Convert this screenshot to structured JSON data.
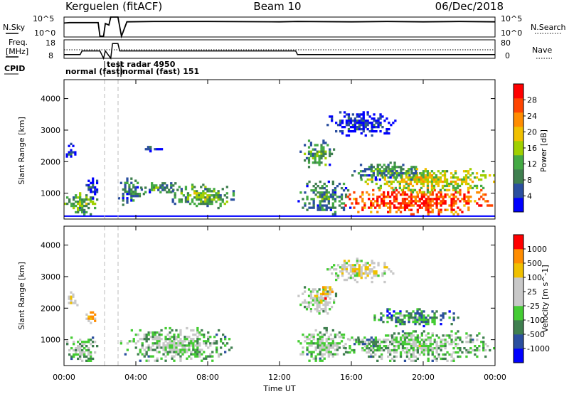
{
  "header": {
    "station": "Kerguelen (fitACF)",
    "beam": "Beam 10",
    "date": "06/Dec/2018"
  },
  "side_labels": {
    "nsky": "N.Sky",
    "nsearch": "N.Search",
    "freq_line1": "Freq.",
    "freq_line2": "[MHz]",
    "nave": "Nave",
    "cpid": "CPID"
  },
  "top_axes": {
    "nsky_left_ticks": [
      "10^5",
      "10^0"
    ],
    "nsearch_right_ticks": [
      "10^5",
      "10^0"
    ],
    "freq_left_ticks": [
      "18",
      "8"
    ],
    "nave_right_ticks": [
      "80",
      "0"
    ]
  },
  "cpid_labels": {
    "normal_fast": "normal (fast)",
    "test_radar": "test radar 4950",
    "normal_fast_151": "normal (fast) 151"
  },
  "colors": {
    "power": [
      "#0000ff",
      "#2b4f9f",
      "#3f7f4f",
      "#44aa44",
      "#a0d000",
      "#f0c000",
      "#ff8c00",
      "#ff4400",
      "#ff0000"
    ],
    "velocity": [
      "#0000ff",
      "#2b4f9f",
      "#3f7f4f",
      "#44cc33",
      "#c8c8c8",
      "#c8c8c8",
      "#f0c000",
      "#ff8c00",
      "#ff0000"
    ]
  },
  "chart_data": [
    {
      "type": "line",
      "x": [
        0,
        0.3,
        1.9,
        2.0,
        2.2,
        2.3,
        2.5,
        2.6,
        3.0,
        3.2,
        3.5,
        5,
        8,
        12,
        13,
        16,
        18,
        20,
        22,
        24
      ],
      "series": [
        {
          "values": [
            3.5,
            3.6,
            3.6,
            0.2,
            0.2,
            3.4,
            3.0,
            5,
            5,
            0.2,
            3.8,
            3.9,
            3.9,
            3.8,
            3.9,
            3.8,
            3.9,
            3.8,
            3.9,
            3.8
          ]
        }
      ],
      "ylim": [
        0,
        5
      ]
    },
    {
      "type": "line",
      "x": [
        0,
        0.9,
        1.0,
        2.0,
        2.2,
        2.3,
        2.6,
        2.7,
        3.0,
        3.1,
        12.9,
        13.0,
        24
      ],
      "series": [
        {
          "values": [
            10,
            10,
            12,
            12,
            8,
            12,
            8,
            16,
            16,
            12,
            12,
            10,
            10
          ]
        }
      ],
      "ylim": [
        8,
        18
      ]
    },
    {
      "type": "heatmap",
      "xlabel": "",
      "ylabel": "Slant Range [km]",
      "colorbar_label": "Power [dB]",
      "colorbar_ticks": [
        "28",
        "24",
        "20",
        "16",
        "12",
        "8",
        "4"
      ],
      "xlim": [
        0,
        24
      ],
      "ylim": [
        180,
        4600
      ],
      "yticks": [
        "1000",
        "2000",
        "3000",
        "4000"
      ],
      "blobs": [
        {
          "t0": 0,
          "t1": 1.9,
          "r0": 300,
          "r1": 1100,
          "level": 0.45
        },
        {
          "t0": 0.1,
          "t1": 0.8,
          "r0": 2000,
          "r1": 2600,
          "level": 0.2
        },
        {
          "t0": 1.2,
          "t1": 1.9,
          "r0": 800,
          "r1": 1500,
          "level": 0.15
        },
        {
          "t0": 3.0,
          "t1": 4.5,
          "r0": 600,
          "r1": 1500,
          "level": 0.3
        },
        {
          "t0": 4.0,
          "t1": 6.5,
          "r0": 1000,
          "r1": 1350,
          "level": 0.35
        },
        {
          "t0": 6.0,
          "t1": 9.5,
          "r0": 500,
          "r1": 1300,
          "level": 0.45
        },
        {
          "t0": 4.5,
          "t1": 5.5,
          "r0": 2300,
          "r1": 2500,
          "level": 0.2
        },
        {
          "t0": 13.0,
          "t1": 16.0,
          "r0": 300,
          "r1": 1400,
          "level": 0.35
        },
        {
          "t0": 13.0,
          "t1": 15.2,
          "r0": 1800,
          "r1": 2700,
          "level": 0.4
        },
        {
          "t0": 15.5,
          "t1": 24,
          "r0": 300,
          "r1": 1200,
          "level": 0.9
        },
        {
          "t0": 16.5,
          "t1": 24,
          "r0": 1000,
          "r1": 1800,
          "level": 0.6
        },
        {
          "t0": 16.0,
          "t1": 20.0,
          "r0": 1400,
          "r1": 2000,
          "level": 0.35
        },
        {
          "t0": 14.5,
          "t1": 18.5,
          "r0": 2800,
          "r1": 3600,
          "level": 0.15
        }
      ],
      "ground_band": {
        "t0": 0,
        "t1": 24,
        "r": 250,
        "level": 0.05
      }
    },
    {
      "type": "heatmap",
      "xlabel": "Time UT",
      "ylabel": "Slant Range [km]",
      "colorbar_label": "Velocity [m s^-1]",
      "colorbar_ticks": [
        "1000",
        "500",
        "100",
        "25",
        "-25",
        "-100",
        "-500",
        "-1000"
      ],
      "xlim": [
        0,
        24
      ],
      "ylim": [
        180,
        4600
      ],
      "yticks": [
        "1000",
        "2000",
        "3000",
        "4000"
      ],
      "xticks": [
        "00:00",
        "04:00",
        "08:00",
        "12:00",
        "16:00",
        "20:00",
        "00:00"
      ],
      "blobs": [
        {
          "t0": 0,
          "t1": 1.9,
          "r0": 300,
          "r1": 1100,
          "level": 0.5
        },
        {
          "t0": 0.1,
          "t1": 0.8,
          "r0": 2000,
          "r1": 2600,
          "level": 0.7
        },
        {
          "t0": 1.2,
          "t1": 1.9,
          "r0": 1500,
          "r1": 1900,
          "level": 0.75
        },
        {
          "t0": 3.0,
          "t1": 9.5,
          "r0": 300,
          "r1": 1400,
          "level": 0.5
        },
        {
          "t0": 13.0,
          "t1": 16.0,
          "r0": 300,
          "r1": 1400,
          "level": 0.5
        },
        {
          "t0": 13.0,
          "t1": 15.2,
          "r0": 1800,
          "r1": 2700,
          "level": 0.55
        },
        {
          "t0": 14.0,
          "t1": 15.0,
          "r0": 2200,
          "r1": 2700,
          "level": 0.8
        },
        {
          "t0": 15.5,
          "t1": 24,
          "r0": 300,
          "r1": 1300,
          "level": 0.5
        },
        {
          "t0": 17.0,
          "t1": 22.0,
          "r0": 1400,
          "r1": 2000,
          "level": 0.35
        },
        {
          "t0": 16.0,
          "t1": 18.0,
          "r0": 700,
          "r1": 1100,
          "level": 0.4
        },
        {
          "t0": 14.5,
          "t1": 18.5,
          "r0": 2800,
          "r1": 3600,
          "level": 0.65
        }
      ]
    }
  ]
}
